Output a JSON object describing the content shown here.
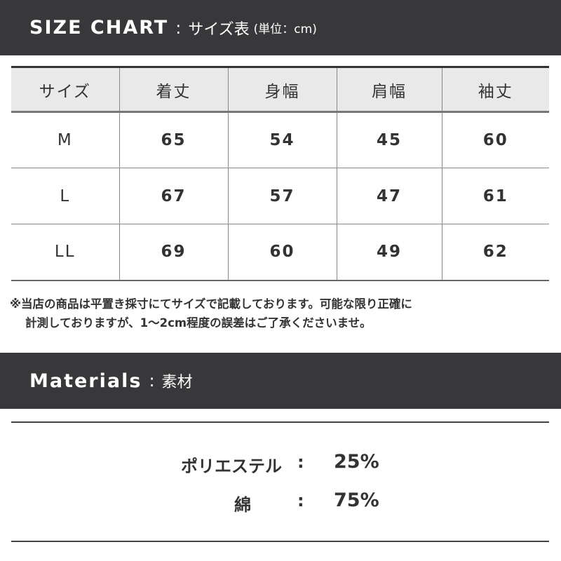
{
  "header": {
    "title": "SIZE CHART",
    "separator": ":",
    "subtitle": "サイズ表",
    "unit": "(単位：cm)"
  },
  "table": {
    "columns": [
      "サイズ",
      "着丈",
      "身幅",
      "肩幅",
      "袖丈"
    ],
    "rows": [
      [
        "M",
        "65",
        "54",
        "45",
        "60"
      ],
      [
        "L",
        "67",
        "57",
        "47",
        "61"
      ],
      [
        "LL",
        "69",
        "60",
        "49",
        "62"
      ]
    ]
  },
  "note": {
    "line1": "※当店の商品は平置き採寸にてサイズで記載しております。可能な限り正確に",
    "line2": "計測しておりますが、1〜2cm程度の誤差はご了承くださいませ。"
  },
  "materials": {
    "title": "Materials",
    "separator": ":",
    "subtitle": "素材",
    "items": [
      {
        "name": "ポリエステル",
        "colon": ":",
        "percent": "25%"
      },
      {
        "name": "綿",
        "colon": ":",
        "percent": "75%"
      }
    ]
  }
}
